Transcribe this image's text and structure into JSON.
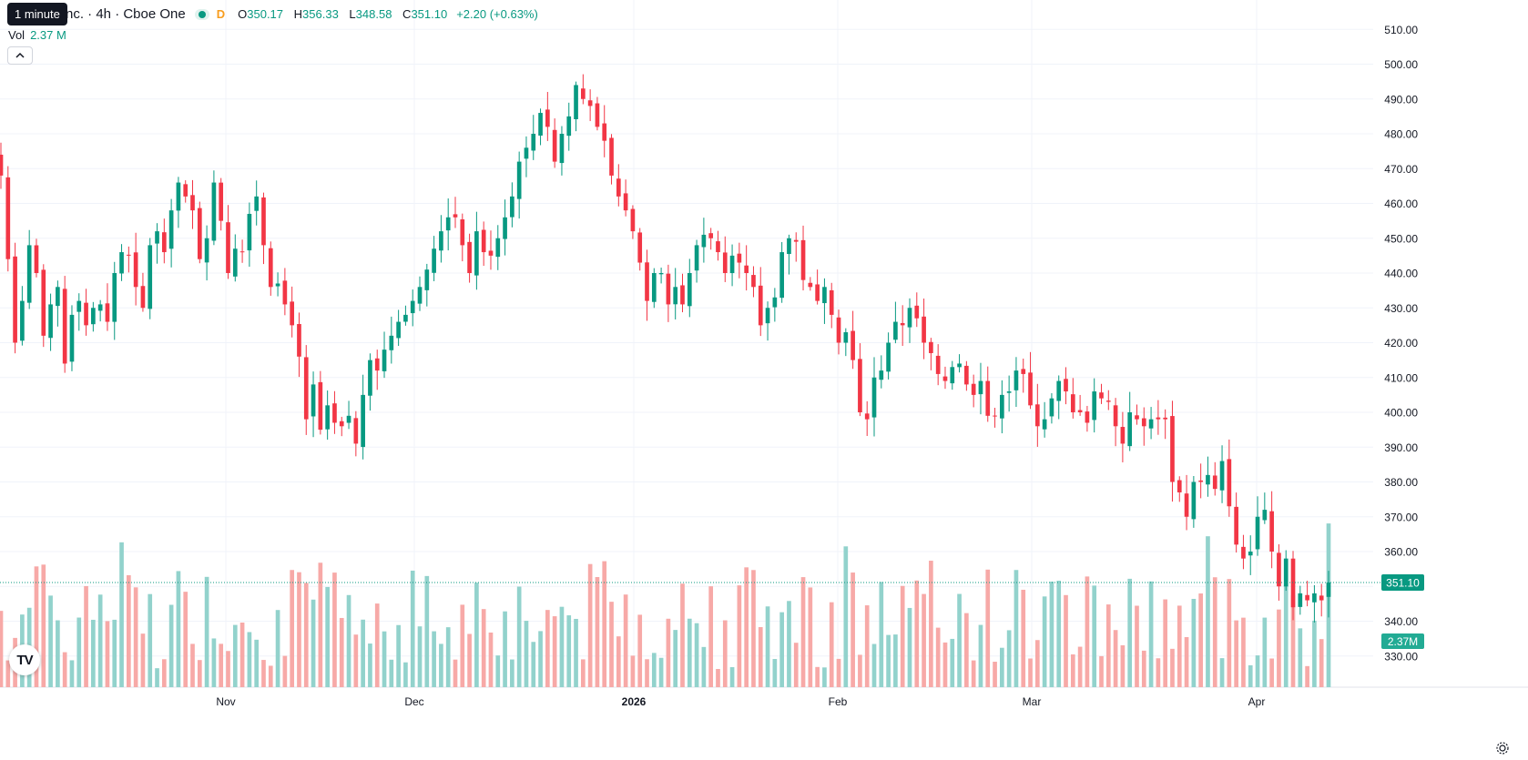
{
  "header": {
    "symbol_text": "nc. · 4h · Cboe One",
    "tooltip": "1 minute",
    "d_tag": "D",
    "open_label": "O",
    "open": "350.17",
    "high_label": "H",
    "high": "356.33",
    "low_label": "L",
    "low": "348.58",
    "close_label": "C",
    "close": "351.10",
    "change": "+2.20 (+0.63%)",
    "vol_label": "Vol",
    "vol_value": "2.37 M"
  },
  "colors": {
    "up": "#089981",
    "down": "#f23645",
    "up_vol": "#92d2cc",
    "down_vol": "#f7a9a7",
    "grid": "#f0f3fa",
    "text": "#131722"
  },
  "icons": {
    "logo": "tradingview-logo-icon",
    "collapse": "chevron-up-icon",
    "settings": "gear-icon"
  },
  "chart_data": {
    "type": "candlestick",
    "interval": "4h",
    "price_axis": {
      "min": 330,
      "max": 510,
      "ticks": [
        510,
        500,
        490,
        480,
        470,
        460,
        450,
        440,
        430,
        420,
        410,
        400,
        390,
        380,
        370,
        360,
        350,
        340,
        330
      ]
    },
    "time_labels": [
      "Nov",
      "Dec",
      "2026",
      "Feb",
      "Mar",
      "Apr"
    ],
    "last_price": {
      "value": 351.1,
      "label": "351.10"
    },
    "last_volume_label": "2.37M",
    "grid": true,
    "close_series": [
      468,
      444,
      420,
      432,
      448,
      440,
      422,
      431,
      436,
      414,
      428,
      432,
      425,
      430,
      431,
      426,
      440,
      446,
      445,
      436,
      430,
      448,
      452,
      446,
      458,
      466,
      462,
      458,
      444,
      450,
      466,
      455,
      440,
      447,
      446,
      457,
      462,
      448,
      436,
      437,
      431,
      425,
      416,
      398,
      408,
      395,
      402,
      397,
      396,
      399,
      391,
      405,
      415,
      412,
      418,
      422,
      426,
      428,
      432,
      436,
      441,
      447,
      452,
      456,
      456,
      448,
      440,
      452,
      446,
      445,
      450,
      456,
      462,
      472,
      476,
      480,
      486,
      482,
      472,
      480,
      485,
      494,
      490,
      488,
      482,
      478,
      468,
      462,
      458,
      452,
      443,
      432,
      440,
      440,
      431,
      436,
      431,
      440,
      448,
      451,
      450,
      446,
      440,
      445,
      443,
      440,
      436,
      425,
      430,
      433,
      446,
      450,
      449,
      438,
      436,
      432,
      436,
      428,
      420,
      423,
      415,
      400,
      398,
      410,
      412,
      420,
      426,
      425,
      430,
      427,
      420,
      417,
      411,
      409,
      413,
      414,
      408,
      405,
      409,
      399,
      399,
      405,
      406,
      412,
      411,
      402,
      396,
      398,
      404,
      409,
      406,
      400,
      400,
      397,
      406,
      404,
      403,
      396,
      391,
      400,
      398,
      396,
      398,
      398,
      398,
      380,
      377,
      370,
      380,
      380,
      382,
      378,
      386,
      373,
      362,
      358,
      360,
      370,
      372,
      360,
      350,
      358,
      344,
      348,
      346,
      348,
      346,
      351.1
    ],
    "volume_axis": "overlay"
  }
}
